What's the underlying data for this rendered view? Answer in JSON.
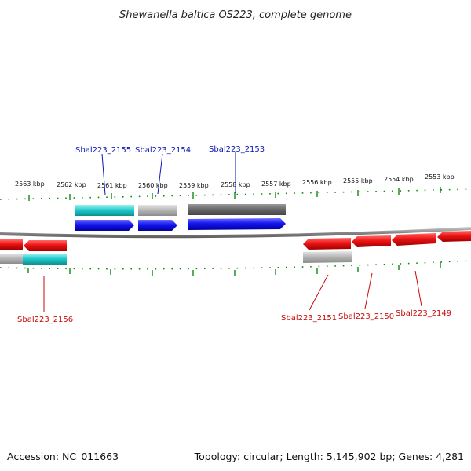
{
  "title": "Shewanella baltica OS223, complete genome",
  "footer": {
    "accession": "Accession: NC_011663",
    "topology": "Topology: circular; Length: 5,145,902 bp; Genes: 4,281"
  },
  "colors": {
    "forward_cds": "#1414ee",
    "reverse_cds": "#ee1414",
    "label_forward": "#0a14b4",
    "label_reverse": "#c80a0a",
    "tick": "#118811",
    "backbone": "#8a8a8a",
    "cyan": "#1cc8c8",
    "light_gray": "#b4b4b4",
    "dark_gray": "#666666"
  },
  "scale_labels": [
    "2563 kbp",
    "2562 kbp",
    "2561 kbp",
    "2560 kbp",
    "2559 kbp",
    "2558 kbp",
    "2557 kbp",
    "2556 kbp",
    "2555 kbp",
    "2554 kbp",
    "2553 kbp"
  ],
  "genes_forward": [
    {
      "label": "Sbal223_2155",
      "color_feature": "cyan"
    },
    {
      "label": "Sbal223_2154",
      "color_feature": "light_gray"
    },
    {
      "label": "Sbal223_2153",
      "color_feature": "dark_gray"
    }
  ],
  "genes_reverse": [
    {
      "label": "Sbal223_2156",
      "color_feature": "cyan"
    },
    {
      "label": "Sbal223_2151",
      "color_feature": "light_gray"
    },
    {
      "label": "Sbal223_2150",
      "color_feature": "none"
    },
    {
      "label": "Sbal223_2149",
      "color_feature": "none"
    }
  ]
}
